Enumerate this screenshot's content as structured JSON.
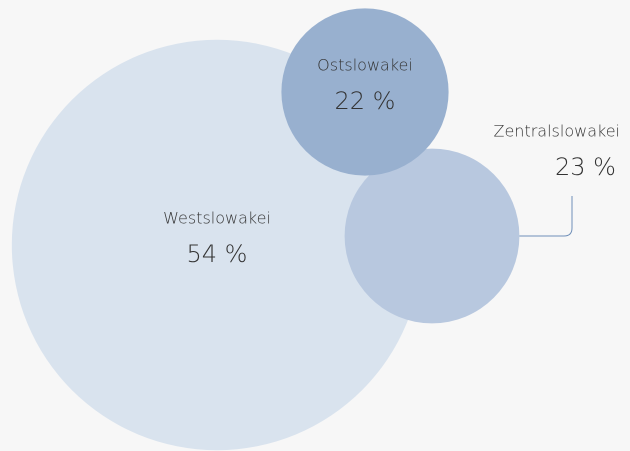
{
  "chart_data": {
    "type": "bubble",
    "categories": [
      "Westslowakei",
      "Ostslowakei",
      "Zentralslowakei"
    ],
    "values": [
      54,
      22,
      23
    ],
    "value_labels": [
      "54 %",
      "22 %",
      "23 %"
    ],
    "colors": [
      "#d9e3ee",
      "#98b0cf",
      "#b8c8df"
    ]
  }
}
